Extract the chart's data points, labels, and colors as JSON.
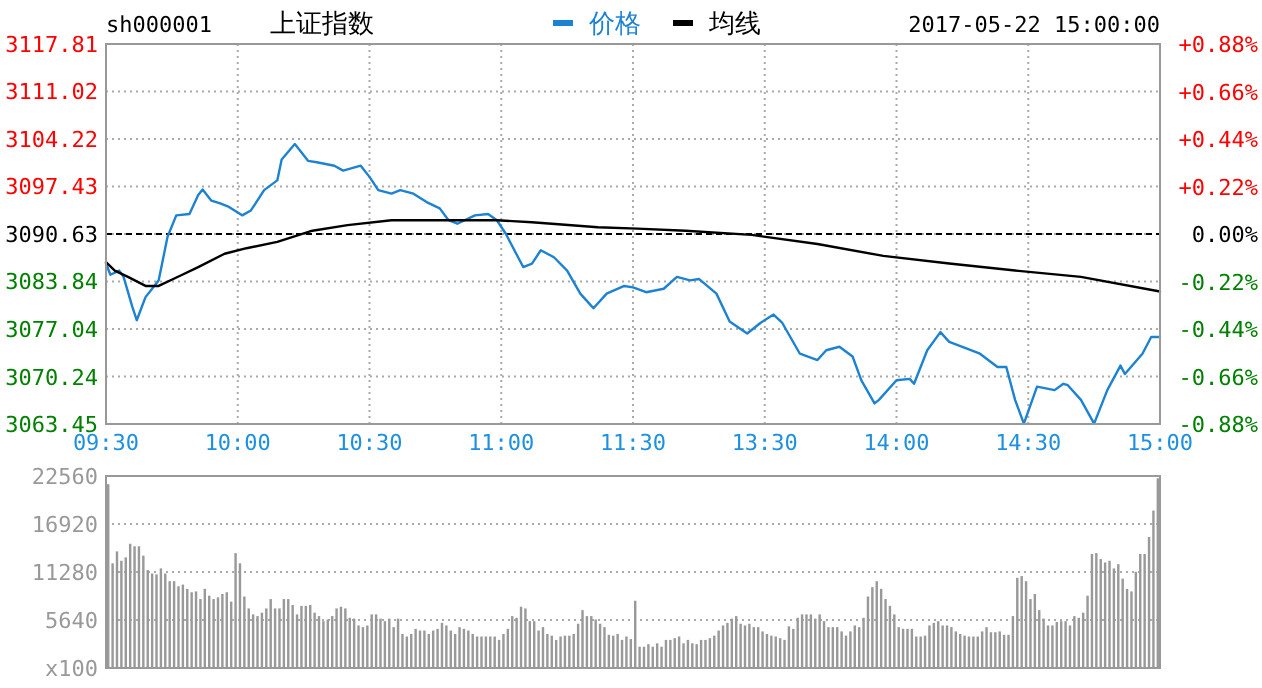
{
  "chart_data": [
    {
      "type": "line",
      "title": "上证指数",
      "subtitle": "sh000001",
      "annotations": [
        "2017-05-22 15:00:00"
      ],
      "legend": "top",
      "grid": true,
      "categories": [
        "09:30",
        null,
        null,
        null,
        null,
        null,
        null,
        null,
        null,
        null,
        null,
        null,
        null,
        null,
        null,
        null,
        null,
        null,
        null,
        null,
        null,
        null,
        null,
        null,
        null,
        null,
        null,
        null,
        null,
        null,
        "10:00",
        null,
        null,
        null,
        null,
        null,
        null,
        null,
        null,
        null,
        null,
        null,
        null,
        null,
        null,
        null,
        null,
        null,
        null,
        null,
        null,
        null,
        null,
        null,
        null,
        null,
        null,
        null,
        null,
        null,
        "10:30",
        null,
        null,
        null,
        null,
        null,
        null,
        null,
        null,
        null,
        null,
        null,
        null,
        null,
        null,
        null,
        null,
        null,
        null,
        null,
        null,
        null,
        null,
        null,
        null,
        null,
        null,
        null,
        null,
        null,
        "11:00",
        null,
        null,
        null,
        null,
        null,
        null,
        null,
        null,
        null,
        null,
        null,
        null,
        null,
        null,
        null,
        null,
        null,
        null,
        null,
        null,
        null,
        null,
        null,
        null,
        null,
        null,
        null,
        null,
        null,
        "11:30",
        null,
        null,
        null,
        null,
        null,
        null,
        null,
        null,
        null,
        null,
        null,
        null,
        null,
        null,
        null,
        null,
        null,
        null,
        null,
        null,
        null,
        null,
        null,
        null,
        null,
        null,
        null,
        null,
        null,
        "13:30",
        null,
        null,
        null,
        null,
        null,
        null,
        null,
        null,
        null,
        null,
        null,
        null,
        null,
        null,
        null,
        null,
        null,
        null,
        null,
        null,
        null,
        null,
        null,
        null,
        null,
        null,
        null,
        null,
        null,
        "14:00",
        null,
        null,
        null,
        null,
        null,
        null,
        null,
        null,
        null,
        null,
        null,
        null,
        null,
        null,
        null,
        null,
        null,
        null,
        null,
        null,
        null,
        null,
        null,
        null,
        null,
        null,
        null,
        null,
        null,
        "14:30",
        null,
        null,
        null,
        null,
        null,
        null,
        null,
        null,
        null,
        null,
        null,
        null,
        null,
        null,
        null,
        null,
        null,
        null,
        null,
        null,
        null,
        null,
        null,
        null,
        null,
        null,
        null,
        null,
        null,
        "15:00"
      ],
      "ylim": [
        3063.45,
        3117.81
      ],
      "yticks": [
        3063.45,
        3070.24,
        3077.04,
        3083.84,
        3090.63,
        3097.43,
        3104.22,
        3111.02,
        3117.81
      ],
      "y2lim": [
        -0.88,
        0.88
      ],
      "y2ticks": [
        {
          "value": -0.88,
          "label": "-0.88%"
        },
        {
          "value": -0.66,
          "label": "-0.66%"
        },
        {
          "value": -0.44,
          "label": "-0.44%"
        },
        {
          "value": -0.22,
          "label": "-0.22%"
        },
        {
          "value": 0,
          "label": "0.00%"
        },
        {
          "value": 0.22,
          "label": "+0.22%"
        },
        {
          "value": 0.44,
          "label": "+0.44%"
        },
        {
          "value": 0.66,
          "label": "+0.66%"
        },
        {
          "value": 0.88,
          "label": "+0.88%"
        }
      ],
      "ref_lines": [
        {
          "axis": "y",
          "value": 3090.63,
          "color": "#000000",
          "line_style": "dashed"
        }
      ],
      "series": [
        {
          "name": "价格",
          "color": "#1e82d2",
          "values": [
            3086.4,
            3084.8,
            null,
            3085.4,
            3084.5,
            null,
            3080.2,
            3078.3,
            null,
            3081.6,
            null,
            3083.2,
            3084.0,
            null,
            3090.2,
            null,
            3093.3,
            null,
            null,
            3093.5,
            null,
            3096.2,
            3097.0,
            null,
            3095.4,
            null,
            3095.0,
            null,
            3094.5,
            null,
            null,
            3093.3,
            null,
            3094.0,
            null,
            null,
            3096.9,
            null,
            null,
            3098.3,
            3101.3,
            null,
            null,
            3103.5,
            null,
            null,
            3101.1,
            null,
            3100.9,
            null,
            null,
            null,
            3100.4,
            null,
            3099.7,
            null,
            null,
            null,
            3100.4,
            null,
            3098.8,
            null,
            3096.9,
            null,
            null,
            3096.4,
            null,
            3096.9,
            null,
            null,
            3096.4,
            null,
            null,
            3095.2,
            null,
            null,
            3094.3,
            null,
            3092.6,
            null,
            3092.1,
            null,
            null,
            null,
            3093.3,
            null,
            null,
            3093.5,
            null,
            3092.6,
            null,
            3090.7,
            null,
            null,
            null,
            3085.9,
            null,
            3086.4,
            null,
            3088.3,
            null,
            null,
            3087.3,
            null,
            null,
            3085.4,
            null,
            null,
            3082.1,
            null,
            3080.7,
            3080.0,
            null,
            null,
            3082.1,
            null,
            null,
            null,
            3083.2,
            null,
            3083.0,
            null,
            null,
            3082.3,
            null,
            null,
            null,
            3082.8,
            null,
            null,
            3084.5,
            null,
            null,
            3084.0,
            null,
            3084.2,
            null,
            null,
            null,
            3082.1,
            null,
            null,
            3078.1,
            null,
            null,
            null,
            3076.4,
            null,
            null,
            3077.9,
            null,
            null,
            3079.1,
            null,
            3077.9,
            null,
            null,
            null,
            3073.5,
            null,
            null,
            null,
            3072.6,
            null,
            3074.0,
            null,
            null,
            3074.5,
            null,
            null,
            3073.1,
            null,
            3069.7,
            null,
            null,
            3066.4,
            3066.9,
            null,
            null,
            null,
            3069.7,
            null,
            null,
            3069.9,
            3069.2,
            null,
            null,
            3074.0,
            null,
            null,
            3076.6,
            null,
            3075.2,
            null,
            null,
            3074.5,
            null,
            null,
            null,
            3073.5,
            null,
            null,
            null,
            3071.6,
            null,
            3071.6,
            null,
            3066.9,
            null,
            3063.5,
            null,
            null,
            3068.8,
            null,
            null,
            null,
            3068.3,
            null,
            3069.2,
            3069.0,
            null,
            null,
            3066.9,
            null,
            null,
            3063.5,
            null,
            null,
            3068.3,
            null,
            null,
            3071.8,
            3070.6,
            null,
            null,
            null,
            3073.5,
            null,
            3075.9,
            null,
            3075.9
          ]
        },
        {
          "name": "均线",
          "color": "#000000",
          "values": [
            3086.6,
            null,
            3085.4,
            null,
            null,
            3084.5,
            null,
            null,
            null,
            3083.2,
            null,
            null,
            3083.2,
            null,
            null,
            null,
            null,
            3084.7,
            null,
            null,
            null,
            3085.9,
            null,
            null,
            null,
            null,
            null,
            3087.8,
            null,
            null,
            null,
            null,
            3088.6,
            null,
            null,
            null,
            null,
            null,
            null,
            3089.5,
            null,
            null,
            null,
            null,
            null,
            null,
            null,
            3091.1,
            null,
            null,
            null,
            null,
            null,
            null,
            null,
            3091.9,
            null,
            null,
            null,
            null,
            null,
            null,
            null,
            null,
            null,
            3092.6,
            null,
            null,
            null,
            null,
            null,
            null,
            null,
            null,
            3092.6,
            null,
            null,
            null,
            null,
            null,
            null,
            null,
            null,
            null,
            null,
            null,
            null,
            null,
            null,
            3092.6,
            null,
            null,
            null,
            null,
            null,
            null,
            null,
            3092.3,
            null,
            null,
            null,
            null,
            null,
            null,
            null,
            null,
            null,
            null,
            null,
            null,
            null,
            null,
            3091.6,
            null,
            null,
            null,
            null,
            null,
            null,
            null,
            null,
            3091.4,
            null,
            null,
            null,
            null,
            null,
            null,
            null,
            null,
            null,
            null,
            3091.1,
            null,
            null,
            null,
            null,
            null,
            null,
            null,
            null,
            null,
            null,
            null,
            null,
            null,
            null,
            3090.5,
            null,
            null,
            null,
            null,
            null,
            null,
            null,
            null,
            null,
            null,
            null,
            null,
            null,
            null,
            3089.2,
            null,
            null,
            null,
            null,
            null,
            null,
            null,
            null,
            null,
            null,
            null,
            null,
            null,
            null,
            3087.5,
            null,
            null,
            null,
            null,
            null,
            null,
            null,
            null,
            null,
            null,
            null,
            null,
            null,
            null,
            3086.4,
            null,
            null,
            null,
            null,
            null,
            null,
            null,
            null,
            null,
            null,
            null,
            null,
            null,
            null,
            3085.4,
            null,
            null,
            null,
            null,
            null,
            null,
            null,
            null,
            null,
            null,
            null,
            null,
            null,
            null,
            3084.5,
            null,
            null,
            null,
            null,
            null,
            null,
            null,
            null,
            null,
            null,
            null,
            null,
            null,
            null,
            null,
            null,
            null,
            3082.4
          ]
        }
      ]
    },
    {
      "type": "bar",
      "grid": "y",
      "tick_labels": "y",
      "categories": [
        null,
        null,
        null,
        null,
        null,
        null,
        null,
        null,
        null,
        null,
        null,
        null,
        null,
        null,
        null,
        null,
        null,
        null,
        null,
        null,
        null,
        null,
        null,
        null,
        null,
        null,
        null,
        null,
        null,
        null,
        null,
        null,
        null,
        null,
        null,
        null,
        null,
        null,
        null,
        null,
        null,
        null,
        null,
        null,
        null,
        null,
        null,
        null,
        null,
        null,
        null,
        null,
        null,
        null,
        null,
        null,
        null,
        null,
        null,
        null,
        null,
        null,
        null,
        null,
        null,
        null,
        null,
        null,
        null,
        null,
        null,
        null,
        null,
        null,
        null,
        null,
        null,
        null,
        null,
        null,
        null,
        null,
        null,
        null,
        null,
        null,
        null,
        null,
        null,
        null,
        null,
        null,
        null,
        null,
        null,
        null,
        null,
        null,
        null,
        null,
        null,
        null,
        null,
        null,
        null,
        null,
        null,
        null,
        null,
        null,
        null,
        null,
        null,
        null,
        null,
        null,
        null,
        null,
        null,
        null,
        null,
        null,
        null,
        null,
        null,
        null,
        null,
        null,
        null,
        null,
        null,
        null,
        null,
        null,
        null,
        null,
        null,
        null,
        null,
        null,
        null,
        null,
        null,
        null,
        null,
        null,
        null,
        null,
        null,
        null,
        null,
        null,
        null,
        null,
        null,
        null,
        null,
        null,
        null,
        null,
        null,
        null,
        null,
        null,
        null,
        null,
        null,
        null,
        null,
        null,
        null,
        null,
        null,
        null,
        null,
        null,
        null,
        null,
        null,
        null,
        null,
        null,
        null,
        null,
        null,
        null,
        null,
        null,
        null,
        null,
        null,
        null,
        null,
        null,
        null,
        null,
        null,
        null,
        null,
        null,
        null,
        null,
        null,
        null,
        null,
        null,
        null,
        null,
        null,
        null,
        null,
        null,
        null,
        null,
        null,
        null,
        null,
        null,
        null,
        null,
        null,
        null,
        null,
        null,
        null,
        null,
        null,
        null,
        null,
        null,
        null,
        null,
        null,
        null,
        null,
        null,
        null,
        null,
        null,
        null
      ],
      "ylim": [
        0,
        22560
      ],
      "yticks": [
        {
          "value": 0,
          "label": "x100"
        },
        5640,
        11280,
        16920,
        22560
      ],
      "series": [
        {
          "color": "#999999",
          "values": [
            21600,
            12300,
            13700,
            12600,
            13000,
            14600,
            14300,
            14300,
            13200,
            11500,
            11100,
            11000,
            11700,
            11100,
            10200,
            10200,
            9600,
            9800,
            9300,
            8900,
            9000,
            8100,
            9300,
            8500,
            8100,
            8300,
            8700,
            8900,
            7800,
            13500,
            12300,
            8400,
            7000,
            6300,
            6100,
            6500,
            7000,
            8100,
            7000,
            7000,
            8100,
            8100,
            7400,
            6300,
            7300,
            7300,
            7400,
            6500,
            6100,
            5500,
            5700,
            6100,
            7000,
            7200,
            7000,
            5900,
            5800,
            5000,
            4800,
            5000,
            6300,
            6300,
            5800,
            5500,
            5800,
            4800,
            5800,
            4000,
            3700,
            4000,
            4600,
            4400,
            4400,
            4000,
            4400,
            4600,
            5300,
            5000,
            4400,
            4000,
            4800,
            4600,
            4400,
            4000,
            3700,
            3700,
            3700,
            3700,
            3700,
            3300,
            4000,
            4600,
            6100,
            5900,
            7200,
            7000,
            5500,
            5500,
            4400,
            4800,
            4000,
            3800,
            3300,
            3700,
            3800,
            3800,
            4000,
            5200,
            6800,
            6100,
            6100,
            5700,
            5200,
            4800,
            3900,
            3800,
            4000,
            3300,
            3700,
            3400,
            7900,
            2500,
            2500,
            2800,
            2500,
            2900,
            2500,
            3300,
            3300,
            3500,
            3700,
            2900,
            3300,
            2900,
            2800,
            3300,
            3300,
            3500,
            3800,
            4400,
            5000,
            5300,
            5800,
            6100,
            5200,
            5000,
            5200,
            4800,
            4800,
            4300,
            4000,
            3800,
            3700,
            3500,
            3300,
            4900,
            4600,
            5900,
            6300,
            6300,
            6300,
            5800,
            6300,
            5500,
            4800,
            4800,
            4800,
            4300,
            3800,
            4300,
            5000,
            4800,
            5900,
            8400,
            9500,
            10200,
            9300,
            8100,
            7300,
            6300,
            4800,
            4600,
            4600,
            4600,
            3700,
            3700,
            3800,
            5000,
            5300,
            5500,
            5000,
            5000,
            4800,
            4300,
            4000,
            3800,
            3700,
            3700,
            3700,
            4300,
            4800,
            4200,
            4200,
            4300,
            3900,
            3900,
            6100,
            10600,
            10800,
            10200,
            8100,
            8700,
            6800,
            5800,
            5000,
            5000,
            5400,
            5500,
            5500,
            5000,
            6100,
            5900,
            6500,
            8500,
            13400,
            13500,
            12800,
            12400,
            12600,
            11700,
            12200,
            10500,
            9300,
            9000,
            11300,
            13400,
            13400,
            15400,
            18500,
            22300
          ]
        }
      ]
    }
  ]
}
